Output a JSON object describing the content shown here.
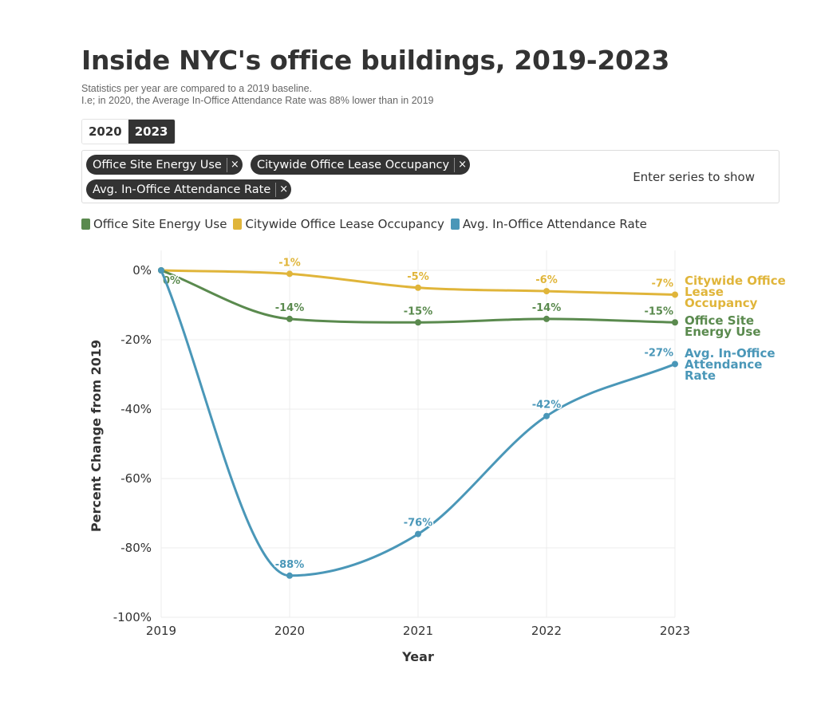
{
  "header": {
    "title": "Inside NYC's office buildings, 2019-2023",
    "subtitle_line1": "Statistics per year are compared to a 2019 baseline.",
    "subtitle_line2": "I.e; in 2020, the Average In-Office Attendance Rate was 88% lower than in 2019"
  },
  "tabs": [
    {
      "label": "2020",
      "active": false
    },
    {
      "label": "2023",
      "active": true
    }
  ],
  "series_selector": {
    "chips": [
      {
        "label": "Office Site Energy Use",
        "remove": "×"
      },
      {
        "label": "Citywide Office Lease Occupancy",
        "remove": "×"
      },
      {
        "label": "Avg. In-Office Attendance Rate",
        "remove": "×"
      }
    ],
    "placeholder": "Enter series to show"
  },
  "colors": {
    "energy": "#5a8a4e",
    "lease": "#e0b53a",
    "attendance": "#4a97b8",
    "grid": "#ececec",
    "axis_text": "#333333"
  },
  "chart_data": {
    "type": "line",
    "x": [
      2019,
      2020,
      2021,
      2022,
      2023
    ],
    "xlabel": "Year",
    "ylabel": "Percent Change from 2019",
    "ylim": [
      -100,
      0
    ],
    "yticks": [
      0,
      -20,
      -40,
      -60,
      -80,
      -100
    ],
    "ytick_labels": [
      "0%",
      "-20%",
      "-40%",
      "-60%",
      "-80%",
      "-100%"
    ],
    "xtick_labels": [
      "2019",
      "2020",
      "2021",
      "2022",
      "2023"
    ],
    "grid": true,
    "legend": "top",
    "series": [
      {
        "name": "Office Site Energy Use",
        "key": "energy",
        "values": [
          0,
          -14,
          -15,
          -14,
          -15
        ],
        "point_labels": [
          "0%",
          "-14%",
          "-15%",
          "-14%",
          "-15%"
        ],
        "end_label": [
          "Office Site",
          "Energy Use"
        ]
      },
      {
        "name": "Citywide Office Lease Occupancy",
        "key": "lease",
        "values": [
          0,
          -1,
          -5,
          -6,
          -7
        ],
        "point_labels": [
          "",
          "-1%",
          "-5%",
          "-6%",
          "-7%"
        ],
        "end_label": [
          "Citywide Office",
          "Lease",
          "Occupancy"
        ]
      },
      {
        "name": "Avg. In-Office Attendance Rate",
        "key": "attendance",
        "values": [
          0,
          -88,
          -76,
          -42,
          -27
        ],
        "point_labels": [
          "",
          "-88%",
          "-76%",
          "-42%",
          "-27%"
        ],
        "end_label": [
          "Avg. In-Office",
          "Attendance",
          "Rate"
        ]
      }
    ]
  }
}
